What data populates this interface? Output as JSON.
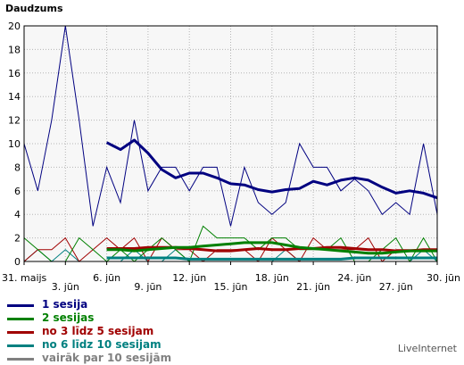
{
  "chart_data": {
    "type": "line",
    "ylabel": "Daudzums",
    "ylim": [
      0,
      20
    ],
    "yticks": [
      0,
      2,
      4,
      6,
      8,
      10,
      12,
      14,
      16,
      18,
      20
    ],
    "grid": true,
    "x": [
      "31. maijs",
      "1. jūn",
      "2. jūn",
      "3. jūn",
      "4. jūn",
      "5. jūn",
      "6. jūn",
      "7. jūn",
      "8. jūn",
      "9. jūn",
      "10. jūn",
      "11. jūn",
      "12. jūn",
      "13. jūn",
      "14. jūn",
      "15. jūn",
      "16. jūn",
      "17. jūn",
      "18. jūn",
      "19. jūn",
      "20. jūn",
      "21. jūn",
      "22. jūn",
      "23. jūn",
      "24. jūn",
      "25. jūn",
      "26. jūn",
      "27. jūn",
      "28. jūn",
      "29. jūn",
      "30. jūn"
    ],
    "xtick_labels": [
      {
        "index": 0,
        "label": "31. maijs"
      },
      {
        "index": 3,
        "label": "3. jūn"
      },
      {
        "index": 6,
        "label": "6. jūn"
      },
      {
        "index": 9,
        "label": "9. jūn"
      },
      {
        "index": 12,
        "label": "12. jūn"
      },
      {
        "index": 15,
        "label": "15. jūn"
      },
      {
        "index": 18,
        "label": "18. jūn"
      },
      {
        "index": 21,
        "label": "21. jūn"
      },
      {
        "index": 24,
        "label": "24. jūn"
      },
      {
        "index": 27,
        "label": "27. jūn"
      },
      {
        "index": 30,
        "label": "30. jūn"
      }
    ],
    "series": [
      {
        "name": "1 sesija",
        "color": "#000080",
        "values": [
          10,
          6,
          12,
          20,
          12,
          3,
          8,
          5,
          12,
          6,
          8,
          8,
          6,
          8,
          8,
          3,
          8,
          5,
          4,
          5,
          10,
          8,
          8,
          6,
          7,
          6,
          4,
          5,
          4,
          10,
          4
        ]
      },
      {
        "name": "2 sesijas",
        "color": "#008000",
        "values": [
          2,
          1,
          0,
          0,
          2,
          1,
          0,
          1,
          0,
          1,
          2,
          1,
          0,
          3,
          2,
          2,
          2,
          1,
          2,
          2,
          1,
          1,
          1,
          2,
          0,
          0,
          1,
          2,
          0,
          2,
          0
        ]
      },
      {
        "name": "no 3 līdz 5 sesijam",
        "color": "#a00000",
        "values": [
          0,
          1,
          1,
          2,
          0,
          1,
          2,
          1,
          2,
          0,
          2,
          1,
          1,
          0,
          1,
          1,
          1,
          0,
          2,
          1,
          0,
          2,
          1,
          1,
          1,
          2,
          0,
          1,
          1,
          1,
          1
        ]
      },
      {
        "name": "no 6 līdz 10 sesijam",
        "color": "#008080",
        "values": [
          0,
          1,
          0,
          1,
          0,
          0,
          0,
          0,
          1,
          0,
          0,
          1,
          0,
          0,
          0,
          0,
          0,
          0,
          0,
          1,
          0,
          0,
          0,
          0,
          0,
          0,
          0,
          0,
          0,
          1,
          0
        ]
      },
      {
        "name": "vairāk par 10 sesijām",
        "color": "#808080",
        "values": [
          0,
          0,
          0,
          0,
          0,
          0,
          0,
          0,
          0,
          0,
          0,
          0,
          0,
          0,
          0,
          0,
          0,
          0,
          0,
          0,
          0,
          0,
          0,
          0,
          0,
          0,
          0,
          0,
          0,
          0,
          0
        ]
      }
    ],
    "trend_series": [
      {
        "name": "1 sesija",
        "color": "#000080",
        "start_index": 6,
        "values": [
          10.1,
          9.5,
          10.3,
          9.2,
          7.8,
          7.1,
          7.5,
          7.5,
          7.1,
          6.6,
          6.5,
          6.1,
          5.9,
          6.1,
          6.2,
          6.8,
          6.5,
          6.9,
          7.1,
          6.9,
          6.3,
          5.8,
          6.0,
          5.8,
          5.4
        ]
      },
      {
        "name": "2 sesijas",
        "color": "#008000",
        "start_index": 6,
        "values": [
          1.0,
          1.0,
          0.9,
          1.0,
          1.1,
          1.2,
          1.2,
          1.3,
          1.4,
          1.5,
          1.6,
          1.6,
          1.6,
          1.4,
          1.2,
          1.1,
          1.0,
          0.9,
          0.8,
          0.7,
          0.7,
          0.8,
          0.9,
          0.9,
          0.9
        ]
      },
      {
        "name": "no 3 līdz 5 sesijam",
        "color": "#a00000",
        "start_index": 6,
        "values": [
          1.1,
          1.1,
          1.1,
          1.2,
          1.2,
          1.2,
          1.1,
          1.0,
          0.9,
          0.9,
          1.0,
          1.1,
          1.0,
          1.0,
          1.1,
          1.1,
          1.2,
          1.2,
          1.1,
          1.0,
          1.0,
          0.9,
          0.9,
          1.0,
          1.0
        ]
      },
      {
        "name": "no 6 līdz 10 sesijam",
        "color": "#008080",
        "start_index": 6,
        "values": [
          0.3,
          0.3,
          0.3,
          0.3,
          0.3,
          0.3,
          0.2,
          0.2,
          0.2,
          0.2,
          0.2,
          0.2,
          0.2,
          0.2,
          0.2,
          0.2,
          0.2,
          0.2,
          0.3,
          0.3,
          0.3,
          0.3,
          0.3,
          0.3,
          0.3
        ]
      }
    ],
    "legend_position": "bottom-left"
  },
  "brand": "LiveInternet"
}
